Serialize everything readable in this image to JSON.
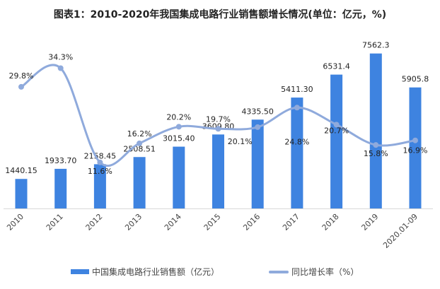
{
  "chart_data": {
    "type": "bar",
    "title": "图表1：2010-2020年我国集成电路行业销售额增长情况(单位：亿元，%)",
    "categories": [
      "2010",
      "2011",
      "2012",
      "2013",
      "2014",
      "2015",
      "2016",
      "2017",
      "2018",
      "2019",
      "2020.01-09"
    ],
    "series": [
      {
        "name": "中国集成电路行业销售额（亿元）",
        "type": "bar",
        "color": "#3E83E0",
        "values": [
          1440.15,
          1933.7,
          2158.45,
          2508.51,
          3015.4,
          3609.8,
          4335.5,
          5411.3,
          6531.4,
          7562.3,
          5905.8
        ],
        "labels": [
          "1440.15",
          "1933.70",
          "2158.45",
          "2508.51",
          "3015.40",
          "3609.80",
          "4335.50",
          "5411.30",
          "6531.4",
          "7562.3",
          "5905.8"
        ]
      },
      {
        "name": "同比增长率（%）",
        "type": "line",
        "color": "#8FAADC",
        "axis": "secondary",
        "values": [
          29.8,
          34.3,
          11.6,
          16.2,
          20.2,
          19.7,
          20.1,
          24.8,
          20.7,
          15.8,
          16.9
        ],
        "labels": [
          "29.8%",
          "34.3%",
          "11.6%",
          "16.2%",
          "20.2%",
          "19.7%",
          "20.1%",
          "24.8%",
          "20.7%",
          "15.8%",
          "16.9%"
        ]
      }
    ],
    "ylim": [
      0,
      8000
    ],
    "y2lim": [
      0,
      40
    ],
    "grid": false,
    "legend_position": "bottom"
  }
}
